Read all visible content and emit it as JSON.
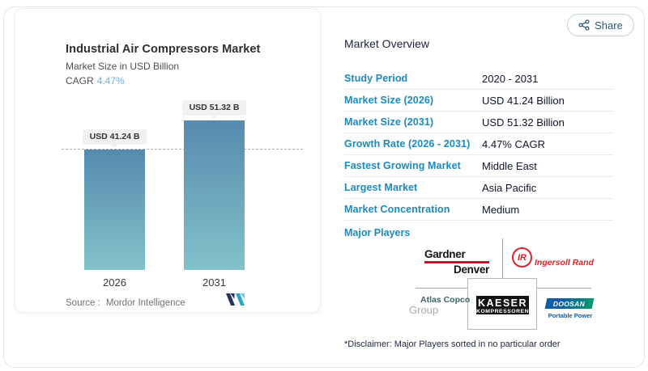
{
  "share": {
    "label": "Share"
  },
  "chart_data": {
    "type": "bar",
    "title": "Industrial Air Compressors Market",
    "subtitle": "Market Size in USD Billion",
    "cagr_label": "CAGR",
    "cagr_value": "4.47%",
    "categories": [
      "2026",
      "2031"
    ],
    "values": [
      41.24,
      51.32
    ],
    "bar_labels": [
      "USD 41.24 B",
      "USD 51.32 B"
    ],
    "ylim": [
      0,
      51.32
    ],
    "reference_line_value": 41.24,
    "bar_gradient_top": "#578aae",
    "bar_gradient_bottom": "#82c2ca",
    "grid": "off",
    "legend_position": "none",
    "source_label": "Source :",
    "source_value": "Mordor Intelligence"
  },
  "overview": {
    "heading": "Market Overview",
    "rows": [
      {
        "label": "Study Period",
        "value": "2020 - 2031"
      },
      {
        "label": "Market Size (2026)",
        "value": "USD 41.24 Billion"
      },
      {
        "label": "Market Size (2031)",
        "value": "USD 51.32 Billion"
      },
      {
        "label": "Growth Rate (2026 - 2031)",
        "value": "4.47% CAGR"
      },
      {
        "label": "Fastest Growing Market",
        "value": "Middle East"
      },
      {
        "label": "Largest Market",
        "value": "Asia Pacific"
      },
      {
        "label": "Market Concentration",
        "value": "Medium"
      }
    ],
    "major_players_label": "Major Players",
    "players": [
      {
        "name": "Gardner Denver",
        "line1": "Gardner",
        "line2": "Denver"
      },
      {
        "name": "Ingersoll Rand",
        "abbr": "IR",
        "text": "Ingersoll Rand"
      },
      {
        "name": "Atlas Copco Group",
        "line1": "Atlas Copco",
        "line2": "Group"
      },
      {
        "name": "Kaeser Kompressoren",
        "line1": "KAESER",
        "line2": "KOMPRESSOREN"
      },
      {
        "name": "Doosan Portable Power",
        "line1": "DOOSAN",
        "line2": "Portable Power"
      }
    ],
    "disclaimer": "*Disclaimer: Major Players sorted in no particular order"
  },
  "colors": {
    "accent_blue": "#198ac2",
    "cagr_blue": "#72abce",
    "navy_text": "#20263c",
    "share_ink": "#2d5a71",
    "gardner_red": "#c8102e",
    "ingersoll_red": "#d8232a",
    "doosan_blue": "#0d5ba8",
    "mordor_navy": "#23355c",
    "mordor_teal": "#2fa3c6"
  }
}
